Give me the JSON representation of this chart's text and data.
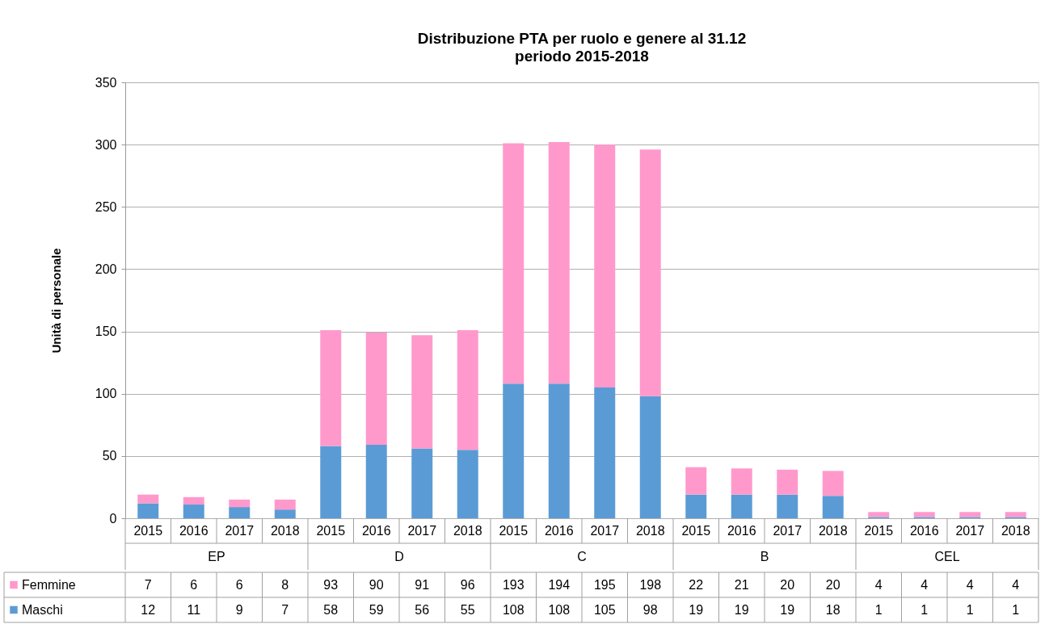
{
  "chart_data": {
    "type": "bar",
    "title": "Distribuzione PTA per ruolo e genere al 31.12",
    "subtitle": "periodo 2015-2018",
    "ylabel": "Unità di personale",
    "categories": [
      "2015",
      "2016",
      "2017",
      "2018",
      "2015",
      "2016",
      "2017",
      "2018",
      "2015",
      "2016",
      "2017",
      "2018",
      "2015",
      "2016",
      "2017",
      "2018",
      "2015",
      "2016",
      "2017",
      "2018"
    ],
    "annotations": [
      "EP",
      "D",
      "C",
      "B",
      "CEL"
    ],
    "series": [
      {
        "name": "Maschi",
        "color": "#5b9bd5",
        "values": [
          12,
          11,
          9,
          7,
          58,
          59,
          56,
          55,
          108,
          108,
          105,
          98,
          19,
          19,
          19,
          18,
          1,
          1,
          1,
          1
        ]
      },
      {
        "name": "Femmine",
        "color": "#ff99cc",
        "values": [
          7,
          6,
          6,
          8,
          93,
          90,
          91,
          96,
          193,
          194,
          195,
          198,
          22,
          21,
          20,
          20,
          4,
          4,
          4,
          4
        ]
      }
    ],
    "stacked": true,
    "ylim": [
      0,
      350
    ],
    "yticks": [
      0,
      50,
      100,
      150,
      200,
      250,
      300,
      350
    ],
    "grid": "y",
    "legend": "bottom",
    "data_labels": true
  }
}
